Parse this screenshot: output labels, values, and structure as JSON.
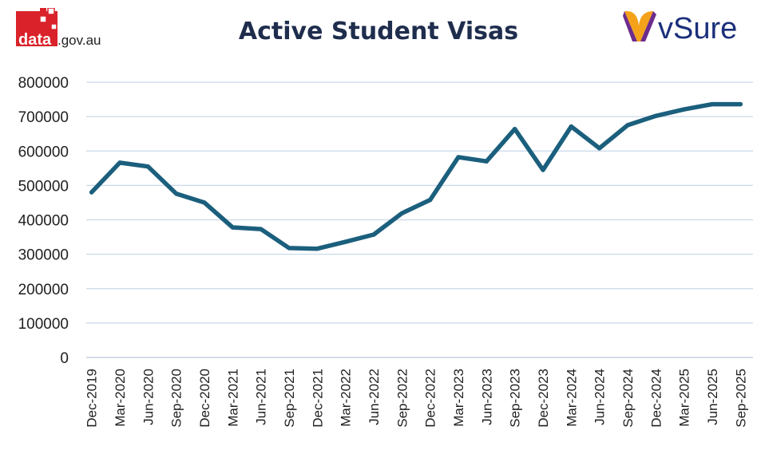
{
  "header": {
    "title": "Active Student Visas",
    "logo_left": {
      "brand": "data",
      "domain": ".gov.au"
    },
    "logo_right": {
      "brand": "vSure"
    }
  },
  "colors": {
    "line": "#1b5f7d",
    "grid": "#c9d9ea",
    "text": "#1f1f1f",
    "title": "#1f2d4d",
    "data_red": "#d9222a",
    "vsure_navy": "#1b2f7a",
    "vsure_orange": "#f5a21b",
    "vsure_purple": "#6c2c8c"
  },
  "chart_data": {
    "type": "line",
    "title": "Active Student Visas",
    "xlabel": "",
    "ylabel": "",
    "ylim": [
      0,
      800000
    ],
    "yticks": [
      "0",
      "100000",
      "200000",
      "300000",
      "400000",
      "500000",
      "600000",
      "700000",
      "800000"
    ],
    "grid": true,
    "legend": "none",
    "categories": [
      "Dec-2019",
      "Mar-2020",
      "Jun-2020",
      "Sep-2020",
      "Dec-2020",
      "Mar-2021",
      "Jun-2021",
      "Sep-2021",
      "Dec-2021",
      "Mar-2022",
      "Jun-2022",
      "Sep-2022",
      "Dec-2022",
      "Mar-2023",
      "Jun-2023",
      "Sep-2023",
      "Dec-2023",
      "Mar-2024",
      "Jun-2024",
      "Sep-2024",
      "Dec-2024",
      "Mar-2025",
      "Jun-2025",
      "Sep-2025"
    ],
    "series": [
      {
        "values": [
          480000,
          566000,
          555000,
          476000,
          450000,
          378000,
          373000,
          318000,
          316000,
          336000,
          357000,
          419000,
          458000,
          582000,
          570000,
          664000,
          545000,
          671000,
          608000,
          675000,
          702000,
          721000,
          736000,
          736000
        ]
      }
    ]
  }
}
